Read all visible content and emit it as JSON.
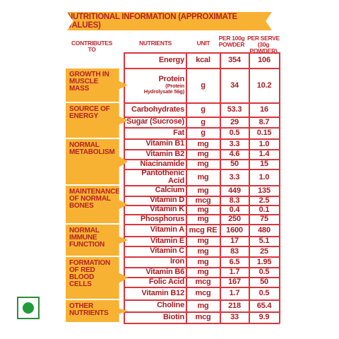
{
  "header": {
    "title": "NUTRITIONAL INFORMATION (APPROXIMATE VALUES)"
  },
  "columns": [
    "CONTRIBUTES TO",
    "NUTRIENTS",
    "UNIT",
    "PER 100g\nPOWDER",
    "PER SERVE\n(30g POWDER)"
  ],
  "rows": [
    {
      "nutrient": "Energy",
      "unit": "kcal",
      "per_100g": "354",
      "per_serve": "106"
    },
    {
      "nutrient": "Protein",
      "note": "(Protein Hydrolysate 56g)",
      "unit": "g",
      "per_100g": "34",
      "per_serve": "10.2"
    },
    {
      "nutrient": "Carbohydrates",
      "unit": "g",
      "per_100g": "53.3",
      "per_serve": "16"
    },
    {
      "nutrient": "Sugar (Sucrose)",
      "unit": "g",
      "per_100g": "29",
      "per_serve": "8.7"
    },
    {
      "nutrient": "Fat",
      "unit": "g",
      "per_100g": "0.5",
      "per_serve": "0.15"
    },
    {
      "nutrient": "Vitamin B1",
      "unit": "mg",
      "per_100g": "3.3",
      "per_serve": "1.0"
    },
    {
      "nutrient": "Vitamin B2",
      "unit": "mg",
      "per_100g": "4.6",
      "per_serve": "1.4"
    },
    {
      "nutrient": "Niacinamide",
      "unit": "mg",
      "per_100g": "50",
      "per_serve": "15"
    },
    {
      "nutrient": "Pantothenic Acid",
      "unit": "mg",
      "per_100g": "3.3",
      "per_serve": "1.0"
    },
    {
      "nutrient": "Calcium",
      "unit": "mg",
      "per_100g": "449",
      "per_serve": "135"
    },
    {
      "nutrient": "Vitamin D",
      "unit": "mcg",
      "per_100g": "8.3",
      "per_serve": "2.5"
    },
    {
      "nutrient": "Vitamin K",
      "unit": "mg",
      "per_100g": "0.4",
      "per_serve": "0.1"
    },
    {
      "nutrient": "Phosphorus",
      "unit": "mg",
      "per_100g": "250",
      "per_serve": "75"
    },
    {
      "nutrient": "Vitamin A",
      "unit": "mcg RE",
      "per_100g": "1600",
      "per_serve": "480"
    },
    {
      "nutrient": "Vitamin E",
      "unit": "mg",
      "per_100g": "17",
      "per_serve": "5.1"
    },
    {
      "nutrient": "Vitamin C",
      "unit": "mg",
      "per_100g": "83",
      "per_serve": "25"
    },
    {
      "nutrient": "Iron",
      "unit": "mg",
      "per_100g": "6.5",
      "per_serve": "1.95"
    },
    {
      "nutrient": "Vitamin B6",
      "unit": "mg",
      "per_100g": "1.7",
      "per_serve": "0.5"
    },
    {
      "nutrient": "Folic Acid",
      "unit": "mcg",
      "per_100g": "167",
      "per_serve": "50"
    },
    {
      "nutrient": "Vitamin B12",
      "unit": "mcg",
      "per_100g": "1.7",
      "per_serve": "0.5"
    },
    {
      "nutrient": "Choline",
      "unit": "mg",
      "per_100g": "218",
      "per_serve": "65.4"
    },
    {
      "nutrient": "Biotin",
      "unit": "mcg",
      "per_100g": "33",
      "per_serve": "9.9"
    }
  ],
  "groups": [
    {
      "label": "GROWTH IN MUSCLE MASS"
    },
    {
      "label": "SOURCE OF ENERGY"
    },
    {
      "label": "NORMAL METABOLISM"
    },
    {
      "label": "MAINTENANCE OF NORMAL BONES"
    },
    {
      "label": "NORMAL IMMUNE FUNCTION"
    },
    {
      "label": "FORMATION OF RED BLOOD CELLS"
    },
    {
      "label": "OTHER NUTRIENTS"
    }
  ]
}
